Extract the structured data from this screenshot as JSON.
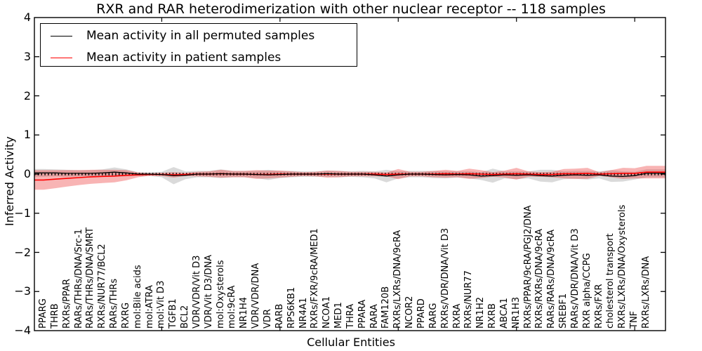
{
  "title": "RXR and RAR heterodimerization with other nuclear receptor -- 118 samples",
  "legend": {
    "items": [
      {
        "label": "Mean activity in all permuted samples",
        "color": "#000000"
      },
      {
        "label": "Mean activity in patient samples",
        "color": "#ff0000"
      }
    ]
  },
  "axes": {
    "xlabel": "Cellular Entities",
    "ylabel": "Inferred Activity",
    "ytick_labels": [
      "4",
      "3",
      "2",
      "1",
      "0",
      "−1",
      "−2",
      "−3",
      "−4"
    ]
  },
  "chart_data": {
    "type": "line",
    "title": "RXR and RAR heterodimerization with other nuclear receptor -- 118 samples",
    "xlabel": "Cellular Entities",
    "ylabel": "Inferred Activity",
    "ylim": [
      -4,
      4
    ],
    "yticks": [
      4,
      3,
      2,
      1,
      0,
      -1,
      -2,
      -3,
      -4
    ],
    "grid": false,
    "legend_position": "upper left",
    "zero_line": {
      "style": "dashed",
      "color": "#000000",
      "y": 0
    },
    "categories": [
      "PPARG",
      "THRB",
      "RXRs/PPAR",
      "RARs/THRs/DNA/Src-1",
      "RARs/THRs/DNA/SMRT",
      "RXRs/NUR77/BCL2",
      "RARs/THRs",
      "RXRG",
      "mol:Bile acids",
      "mol:ATRA",
      "mol:Vit D3",
      "TGFB1",
      "BCL2",
      "VDR/VDR/Vit D3",
      "VDR/Vit D3/DNA",
      "mol:Oxysterols",
      "mol:9cRA",
      "NR1H4",
      "VDR/VDR/DNA",
      "VDR",
      "RARB",
      "RPS6KB1",
      "NR4A1",
      "RXRs/FXR/9cRA/MED1",
      "NCOA1",
      "MED1",
      "THRA",
      "PPARA",
      "RARA",
      "FAM120B",
      "RXRs/LXRs/DNA/9cRA",
      "NCOR2",
      "PPARD",
      "RARG",
      "RXRs/VDR/DNA/Vit D3",
      "RXRA",
      "RXRs/NUR77",
      "NR1H2",
      "RXRB",
      "ABCA1",
      "NR1H3",
      "RXRs/PPAR/9cRA/PGJ2/DNA",
      "RXRs/RXRs/DNA/9cRA",
      "RARs/RARs/DNA/9cRA",
      "SREBF1",
      "RARs/VDR/DNA/Vit D3",
      "RXR alpha/CCPG",
      "RXRs/FXR",
      "cholesterol transport",
      "RXRs/LXRs/DNA/Oxysterols",
      "TNF",
      "RXRs/LXRs/DNA"
    ],
    "series": [
      {
        "name": "Mean activity in all permuted samples",
        "color": "#000000",
        "band_fill": "#8c8c8c",
        "band_opacity": 0.32,
        "values": [
          0.03,
          0.03,
          0.02,
          0.02,
          0.02,
          0.03,
          0.05,
          0.03,
          0.0,
          0.0,
          -0.01,
          -0.04,
          -0.03,
          0.0,
          0.0,
          0.01,
          0.0,
          0.0,
          -0.01,
          -0.02,
          -0.01,
          0.0,
          0.0,
          0.0,
          0.01,
          0.0,
          0.0,
          0.0,
          -0.02,
          -0.05,
          -0.02,
          0.0,
          0.0,
          -0.01,
          -0.02,
          -0.01,
          -0.02,
          -0.05,
          -0.04,
          -0.02,
          -0.03,
          -0.02,
          -0.04,
          -0.05,
          -0.03,
          -0.02,
          -0.03,
          -0.02,
          -0.05,
          -0.06,
          -0.04,
          0.02
        ],
        "std": [
          0.1,
          0.09,
          0.09,
          0.08,
          0.08,
          0.09,
          0.12,
          0.09,
          0.05,
          0.05,
          0.07,
          0.22,
          0.1,
          0.08,
          0.08,
          0.11,
          0.08,
          0.08,
          0.09,
          0.13,
          0.09,
          0.08,
          0.07,
          0.07,
          0.08,
          0.08,
          0.07,
          0.08,
          0.09,
          0.16,
          0.09,
          0.08,
          0.08,
          0.09,
          0.09,
          0.08,
          0.09,
          0.1,
          0.18,
          0.09,
          0.1,
          0.09,
          0.15,
          0.16,
          0.1,
          0.1,
          0.11,
          0.09,
          0.15,
          0.13,
          0.1,
          0.1
        ]
      },
      {
        "name": "Mean activity in patient samples",
        "color": "#ff0000",
        "band_fill": "#eb2828",
        "band_opacity": 0.35,
        "values": [
          -0.15,
          -0.13,
          -0.11,
          -0.09,
          -0.07,
          -0.06,
          -0.05,
          -0.03,
          -0.02,
          -0.01,
          -0.01,
          -0.02,
          -0.01,
          0.0,
          0.0,
          0.01,
          0.0,
          0.0,
          -0.01,
          -0.01,
          0.0,
          0.0,
          0.0,
          0.0,
          0.0,
          0.0,
          0.0,
          0.0,
          0.0,
          -0.01,
          0.0,
          0.0,
          0.0,
          0.0,
          0.01,
          0.0,
          0.01,
          0.0,
          -0.01,
          0.0,
          0.01,
          0.0,
          -0.01,
          -0.01,
          0.01,
          0.01,
          0.02,
          0.0,
          0.01,
          0.02,
          0.02,
          0.05
        ],
        "std": [
          0.25,
          0.23,
          0.21,
          0.19,
          0.18,
          0.17,
          0.16,
          0.13,
          0.06,
          0.03,
          0.04,
          0.07,
          0.04,
          0.06,
          0.07,
          0.1,
          0.08,
          0.08,
          0.11,
          0.1,
          0.09,
          0.07,
          0.05,
          0.06,
          0.09,
          0.08,
          0.06,
          0.06,
          0.06,
          0.05,
          0.13,
          0.06,
          0.06,
          0.08,
          0.1,
          0.08,
          0.13,
          0.1,
          0.06,
          0.09,
          0.15,
          0.07,
          0.06,
          0.07,
          0.12,
          0.13,
          0.14,
          0.05,
          0.09,
          0.14,
          0.13,
          0.16
        ]
      }
    ]
  }
}
